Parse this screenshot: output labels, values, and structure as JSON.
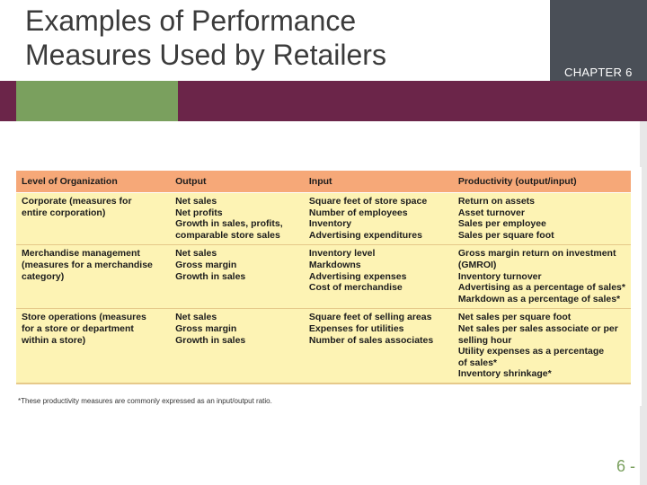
{
  "slide": {
    "title_line1": "Examples of Performance",
    "title_line2": "Measures Used by Retailers",
    "chapter": "CHAPTER 6",
    "page_number": "6 -"
  },
  "colors": {
    "header_band": "#6b2549",
    "accent_green": "#7aa05e",
    "chapter_box": "#4a4f57",
    "table_header": "#f6a878",
    "table_body": "#fdf3b4"
  },
  "table": {
    "headers": [
      "Level of Organization",
      "Output",
      "Input",
      "Productivity (output/input)"
    ],
    "rows": [
      {
        "level": [
          "Corporate (measures for",
          "entire corporation)"
        ],
        "output": [
          "Net sales",
          "Net profits",
          "Growth in sales, profits,",
          "comparable store sales"
        ],
        "input": [
          "Square feet of store space",
          "Number of employees",
          "Inventory",
          "Advertising expenditures"
        ],
        "productivity": [
          "Return on assets",
          "Asset turnover",
          "Sales per employee",
          "Sales per square foot"
        ]
      },
      {
        "level": [
          "Merchandise management",
          "(measures for a merchandise",
          "category)"
        ],
        "output": [
          "Net sales",
          "Gross margin",
          "Growth in sales"
        ],
        "input": [
          "Inventory level",
          "Markdowns",
          "Advertising expenses",
          "Cost of merchandise"
        ],
        "productivity": [
          "Gross margin return on investment",
          "(GMROI)",
          "Inventory turnover",
          "Advertising as a percentage of sales*",
          "Markdown as a percentage of sales*"
        ]
      },
      {
        "level": [
          "Store operations (measures",
          "for a store or department",
          "within a store)"
        ],
        "output": [
          "Net sales",
          "Gross margin",
          "Growth in sales"
        ],
        "input": [
          "Square feet of selling areas",
          "Expenses for utilities",
          "Number of sales associates"
        ],
        "productivity": [
          "Net sales per square foot",
          "Net sales per sales associate or per",
          "selling hour",
          "Utility expenses as a percentage",
          "of sales*",
          "Inventory shrinkage*"
        ]
      }
    ],
    "footnote": "*These productivity measures are commonly expressed as an input/output ratio."
  }
}
